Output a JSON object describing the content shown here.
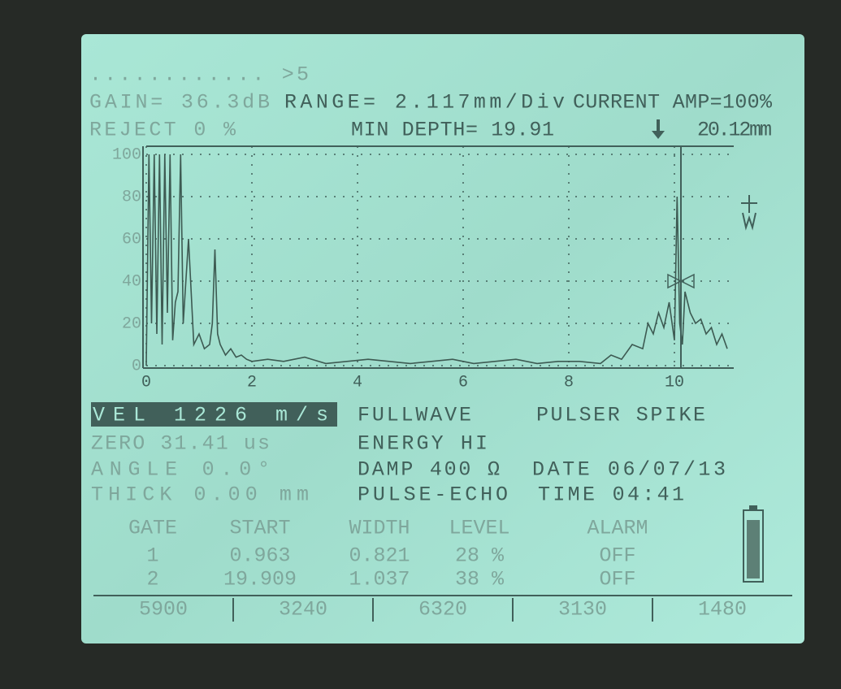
{
  "header": {
    "row1": "............ >5",
    "gain": "GAIN= 36.3dB",
    "range": "RANGE= 2.117mm/Div",
    "current": "CURRENT AMP=100%",
    "reject": "REJECT  0 %",
    "min_depth": "MIN DEPTH= 19.91",
    "depth": "20.12mm"
  },
  "chart_data": {
    "type": "line",
    "x": [
      0,
      0.05,
      0.1,
      0.15,
      0.2,
      0.25,
      0.3,
      0.35,
      0.4,
      0.45,
      0.5,
      0.55,
      0.6,
      0.65,
      0.7,
      0.8,
      0.9,
      1.0,
      1.1,
      1.2,
      1.25,
      1.3,
      1.35,
      1.4,
      1.5,
      1.6,
      1.7,
      1.8,
      1.9,
      2.0,
      2.3,
      2.6,
      3.0,
      3.4,
      3.8,
      4.2,
      4.6,
      5.0,
      5.4,
      5.8,
      6.2,
      6.6,
      7.0,
      7.4,
      7.8,
      8.2,
      8.6,
      8.8,
      9.0,
      9.2,
      9.4,
      9.5,
      9.6,
      9.7,
      9.8,
      9.9,
      10.0,
      10.05,
      10.1,
      10.15,
      10.2,
      10.3,
      10.4,
      10.5,
      10.6,
      10.7,
      10.8,
      10.9,
      11.0
    ],
    "values": [
      0,
      100,
      20,
      100,
      15,
      100,
      10,
      100,
      25,
      100,
      12,
      30,
      35,
      100,
      20,
      60,
      10,
      15,
      8,
      10,
      20,
      55,
      15,
      10,
      5,
      8,
      4,
      5,
      3,
      2,
      3,
      2,
      4,
      1,
      2,
      3,
      2,
      1,
      2,
      3,
      1,
      2,
      3,
      1,
      2,
      2,
      1,
      5,
      3,
      10,
      8,
      20,
      15,
      25,
      18,
      30,
      12,
      80,
      20,
      10,
      35,
      25,
      20,
      22,
      15,
      18,
      10,
      15,
      8
    ],
    "xlim": [
      0,
      11
    ],
    "ylim": [
      0,
      100
    ],
    "xticks": [
      0,
      2,
      4,
      6,
      8,
      10
    ],
    "yticks": [
      0,
      20,
      40,
      60,
      80,
      100
    ],
    "grid": true,
    "color": "#3d5a52"
  },
  "settings": {
    "vel": "VEL  1226  m/s",
    "mode": "FULLWAVE",
    "pulser": "PULSER SPIKE",
    "zero": "ZERO 31.41 us",
    "energy": "ENERGY HI",
    "angle": "ANGLE    0.0°",
    "damp": "DAMP 400 Ω",
    "date": "DATE 06/07/13",
    "thick": "THICK    0.00 mm",
    "pulse_mode": "PULSE-ECHO",
    "time": "TIME 04:41"
  },
  "gates": {
    "headers": [
      "GATE",
      "START",
      "WIDTH",
      "LEVEL",
      "ALARM"
    ],
    "rows": [
      [
        "1",
        "0.963",
        "0.821",
        "28 %",
        "OFF"
      ],
      [
        "2",
        "19.909",
        "1.037",
        "38 %",
        "OFF"
      ]
    ]
  },
  "presets": [
    "5900",
    "3240",
    "6320",
    "3130",
    "1480"
  ]
}
